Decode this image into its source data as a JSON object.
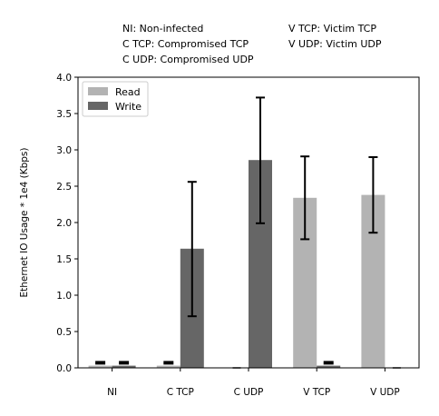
{
  "notes": [
    "NI: Non-infected",
    "C TCP: Compromised TCP",
    "C UDP: Compromised UDP",
    "V TCP: Victim TCP",
    "V UDP: Victim UDP"
  ],
  "chart_data": {
    "type": "bar",
    "title": "",
    "xlabel": "",
    "ylabel": "Ethernet IO Usage * 1e4 (Kbps)",
    "categories": [
      "NI",
      "C TCP",
      "C UDP",
      "V TCP",
      "V UDP"
    ],
    "ylim": [
      0,
      4.0
    ],
    "yticks": [
      "0.0",
      "0.5",
      "1.0",
      "1.5",
      "2.0",
      "2.5",
      "3.0",
      "3.5",
      "4.0"
    ],
    "grid": false,
    "legend": "top-left",
    "series": [
      {
        "name": "Read",
        "color": "#b3b3b3",
        "values": [
          0.03,
          0.03,
          0.0,
          2.34,
          2.38
        ],
        "err_low": [
          0.03,
          0.03,
          0.0,
          1.77,
          1.86
        ],
        "err_high": [
          0.07,
          0.07,
          0.0,
          2.91,
          2.9
        ]
      },
      {
        "name": "Write",
        "color": "#666666",
        "values": [
          0.03,
          1.64,
          2.86,
          0.03,
          0.0
        ],
        "err_low": [
          0.0,
          0.71,
          1.99,
          0.0,
          0.0
        ],
        "err_high": [
          0.07,
          2.56,
          3.72,
          0.07,
          0.0
        ]
      }
    ]
  }
}
